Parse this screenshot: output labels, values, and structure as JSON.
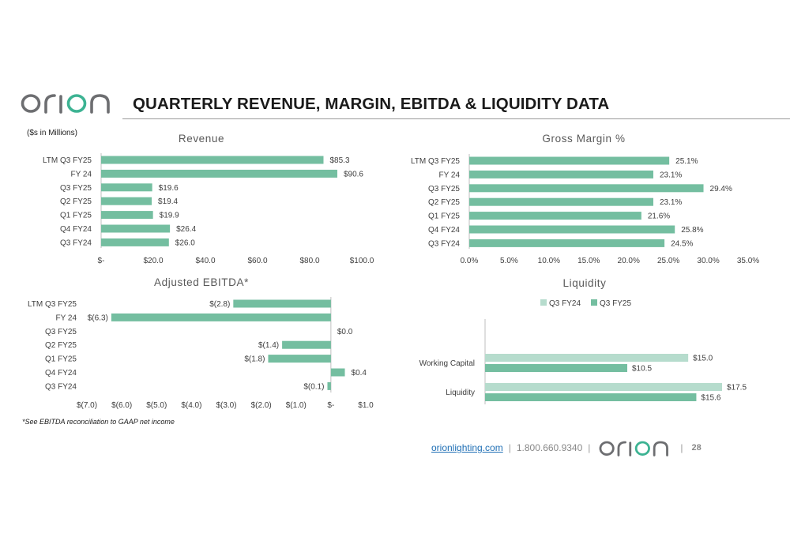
{
  "header": {
    "logo_text": "orion",
    "title": "QUARTERLY REVENUE, MARGIN, EBITDA & LIQUIDITY DATA",
    "units_note": "($s in Millions)"
  },
  "colors": {
    "bar_primary": "#74bea0",
    "bar_light": "#b6dccd",
    "logo_grey": "#6d6e71",
    "logo_teal": "#3db393",
    "link": "#1f6fb5"
  },
  "chart_data": [
    {
      "type": "bar",
      "orientation": "horizontal",
      "title": "Revenue",
      "categories": [
        "LTM Q3 FY25",
        "FY 24",
        "Q3 FY25",
        "Q2 FY25",
        "Q1 FY25",
        "Q4 FY24",
        "Q3 FY24"
      ],
      "values": [
        85.3,
        90.6,
        19.6,
        19.4,
        19.9,
        26.4,
        26.0
      ],
      "value_labels": [
        "$85.3",
        "$90.6",
        "$19.6",
        "$19.4",
        "$19.9",
        "$26.4",
        "$26.0"
      ],
      "xlim": [
        0,
        100
      ],
      "x_ticks": [
        0,
        20,
        40,
        60,
        80,
        100
      ],
      "x_tick_labels": [
        "$-",
        "$20.0",
        "$40.0",
        "$60.0",
        "$80.0",
        "$100.0"
      ],
      "grid": false
    },
    {
      "type": "bar",
      "orientation": "horizontal",
      "title": "Gross Margin %",
      "categories": [
        "LTM Q3 FY25",
        "FY 24",
        "Q3 FY25",
        "Q2 FY25",
        "Q1 FY25",
        "Q4 FY24",
        "Q3 FY24"
      ],
      "values": [
        25.1,
        23.1,
        29.4,
        23.1,
        21.6,
        25.8,
        24.5
      ],
      "value_labels": [
        "25.1%",
        "23.1%",
        "29.4%",
        "23.1%",
        "21.6%",
        "25.8%",
        "24.5%"
      ],
      "xlim": [
        0,
        35
      ],
      "x_ticks": [
        0,
        5,
        10,
        15,
        20,
        25,
        30,
        35
      ],
      "x_tick_labels": [
        "0.0%",
        "5.0%",
        "10.0%",
        "15.0%",
        "20.0%",
        "25.0%",
        "30.0%",
        "35.0%"
      ],
      "grid": false
    },
    {
      "type": "bar",
      "orientation": "horizontal",
      "title": "Adjusted EBITDA*",
      "categories": [
        "LTM Q3 FY25",
        "FY 24",
        "Q3 FY25",
        "Q2 FY25",
        "Q1 FY25",
        "Q4 FY24",
        "Q3 FY24"
      ],
      "values": [
        -2.8,
        -6.3,
        0.0,
        -1.4,
        -1.8,
        0.4,
        -0.1
      ],
      "value_labels": [
        "$(2.8)",
        "$(6.3)",
        "$0.0",
        "$(1.4)",
        "$(1.8)",
        "$0.4",
        "$(0.1)"
      ],
      "xlim": [
        -7,
        1
      ],
      "x_ticks": [
        -7,
        -6,
        -5,
        -4,
        -3,
        -2,
        -1,
        0,
        1
      ],
      "x_tick_labels": [
        "$(7.0)",
        "$(6.0)",
        "$(5.0)",
        "$(4.0)",
        "$(3.0)",
        "$(2.0)",
        "$(1.0)",
        "$-",
        "$1.0"
      ],
      "grid": false
    },
    {
      "type": "bar",
      "orientation": "horizontal",
      "title": "Liquidity",
      "categories": [
        "Working Capital",
        "Liquidity"
      ],
      "series": [
        {
          "name": "Q3 FY24",
          "values": [
            15.0,
            17.5
          ],
          "value_labels": [
            "$15.0",
            "$17.5"
          ],
          "color": "#b6dccd"
        },
        {
          "name": "Q3 FY25",
          "values": [
            10.5,
            15.6
          ],
          "value_labels": [
            "$10.5",
            "$15.6"
          ],
          "color": "#74bea0"
        }
      ],
      "xlim": [
        0,
        17.5
      ],
      "legend": "top",
      "grid": false
    }
  ],
  "footnote": "*See EBITDA reconciliation to GAAP net income",
  "footer": {
    "url": "orionlighting.com",
    "separator": "|",
    "phone": "1.800.660.9340",
    "page_number": "28"
  }
}
